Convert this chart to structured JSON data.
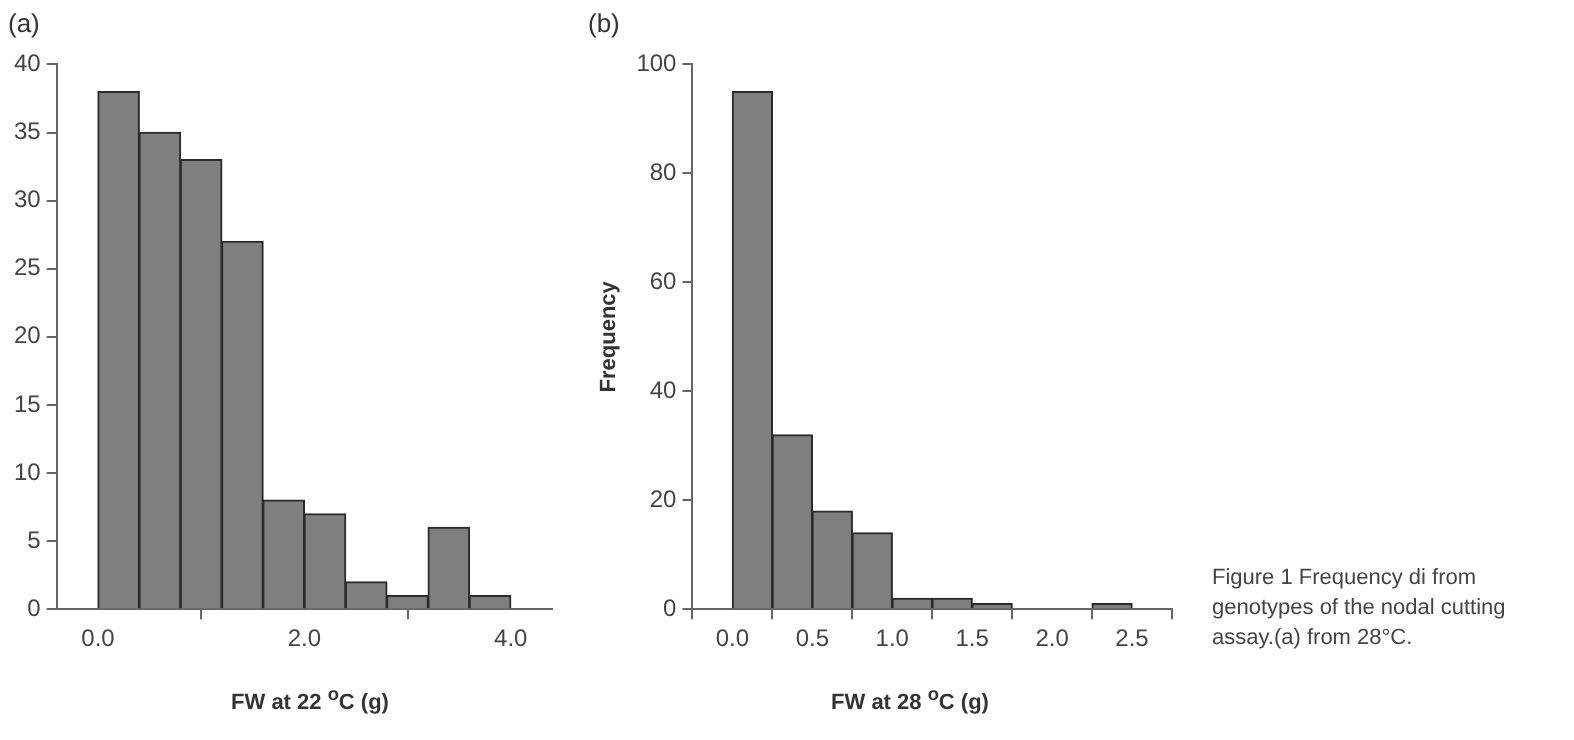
{
  "chart_data": [
    {
      "type": "histogram",
      "title": "(a)",
      "xlabel": "FW at 22 $^{o}$C (g)",
      "bins": [
        0,
        0.4,
        0.8,
        1.2,
        1.6,
        2.0,
        2.4,
        2.8,
        3.2,
        3.6,
        4.0
      ],
      "values": [
        38,
        35,
        33,
        27,
        8,
        7,
        2,
        1,
        6,
        1
      ],
      "color": "#7f7f7f",
      "xlim": [
        -0.4,
        4.4
      ],
      "xticks": [
        {
          "value": 0,
          "label": "0.0"
        },
        {
          "value": 2,
          "label": "2.0"
        },
        {
          "value": 4,
          "label": "4.0"
        }
      ],
      "ylim": [
        0,
        40
      ],
      "yticks": [
        0,
        5,
        10,
        15,
        20,
        25,
        30,
        35,
        40
      ],
      "grid": false,
      "legend": false
    },
    {
      "type": "histogram",
      "title": "(b)",
      "xlabel": "FW at 28 $^{o}$C (g)",
      "ylabel": "Frequency",
      "bins": [
        0,
        0.25,
        0.5,
        0.75,
        1.0,
        1.25,
        1.5,
        1.75,
        2.0,
        2.25,
        2.5
      ],
      "values": [
        95,
        32,
        18,
        14,
        2,
        2,
        1,
        0,
        0,
        1
      ],
      "color": "#7f7f7f",
      "xlim": [
        -0.25,
        2.75
      ],
      "xticks": [
        {
          "value": 0,
          "label": "0.0"
        },
        {
          "value": 0.5,
          "label": "0.5"
        },
        {
          "value": 1,
          "label": "1.0"
        },
        {
          "value": 1.5,
          "label": "1.5"
        },
        {
          "value": 2,
          "label": "2.0"
        },
        {
          "value": 2.5,
          "label": "2.5"
        }
      ],
      "ylim": [
        0,
        100
      ],
      "yticks": [
        0,
        20,
        40,
        60,
        80,
        100
      ],
      "grid": false,
      "legend": false,
      "annotations": [
        "Figure 1  Frequency di from genotypes of the nodal cutting assay.(a) from 28°C."
      ]
    }
  ]
}
